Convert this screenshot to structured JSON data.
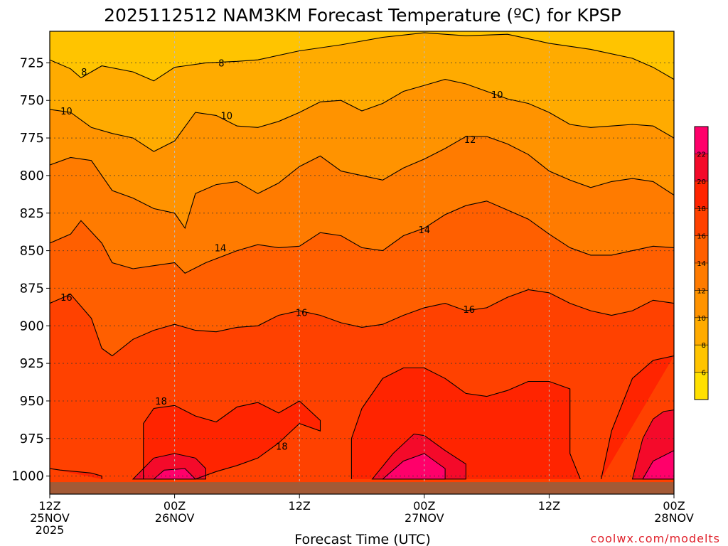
{
  "chart_data": {
    "type": "heatmap",
    "title": "2025112512 NAM3KM Forecast Temperature (ºC) for KPSP",
    "xlabel": "Forecast Time (UTC)",
    "ylabel": "",
    "credit": "coolwx.com/modelts",
    "x_ticks": [
      {
        "hour": 0,
        "line1": "12Z",
        "line2": "25NOV",
        "line3": "2025"
      },
      {
        "hour": 12,
        "line1": "00Z",
        "line2": "26NOV",
        "line3": ""
      },
      {
        "hour": 24,
        "line1": "12Z",
        "line2": "",
        "line3": ""
      },
      {
        "hour": 36,
        "line1": "00Z",
        "line2": "27NOV",
        "line3": ""
      },
      {
        "hour": 48,
        "line1": "12Z",
        "line2": "",
        "line3": ""
      },
      {
        "hour": 60,
        "line1": "00Z",
        "line2": "28NOV",
        "line3": ""
      }
    ],
    "x_range_hours": [
      0,
      60
    ],
    "y_ticks": [
      "725",
      "750",
      "775",
      "800",
      "825",
      "850",
      "875",
      "900",
      "925",
      "950",
      "975",
      "1000"
    ],
    "y_tick_values": [
      725,
      750,
      775,
      800,
      825,
      850,
      875,
      900,
      925,
      950,
      975,
      1000
    ],
    "y_range_hPa": [
      704,
      1012
    ],
    "y_inverted": true,
    "surface_pressure_hPa": 1004,
    "colorbar": {
      "levels": [
        4,
        6,
        8,
        10,
        12,
        14,
        16,
        18,
        20,
        22,
        24
      ],
      "tick_labels": [
        "6",
        "8",
        "10",
        "12",
        "14",
        "16",
        "18",
        "20",
        "22"
      ],
      "colors": [
        "#ffe000",
        "#ffc400",
        "#ffab00",
        "#ff9300",
        "#ff7b00",
        "#ff5f00",
        "#ff4100",
        "#ff2400",
        "#f40a2a",
        "#ff006a"
      ]
    },
    "contours": [
      {
        "value": 8,
        "label": "8",
        "points": [
          [
            0,
            723
          ],
          [
            2,
            729
          ],
          [
            3,
            735
          ],
          [
            5,
            727
          ],
          [
            8,
            731
          ],
          [
            10,
            737
          ],
          [
            12,
            728
          ],
          [
            15,
            725
          ],
          [
            18,
            724
          ],
          [
            20,
            723
          ],
          [
            24,
            717
          ],
          [
            28,
            713
          ],
          [
            32,
            708
          ],
          [
            36,
            705
          ],
          [
            40,
            707
          ],
          [
            44,
            706
          ],
          [
            48,
            712
          ],
          [
            52,
            716
          ],
          [
            56,
            722
          ],
          [
            58,
            728
          ],
          [
            60,
            736
          ]
        ]
      },
      {
        "value": 10,
        "label": "10",
        "points": [
          [
            0,
            756
          ],
          [
            2,
            758
          ],
          [
            4,
            768
          ],
          [
            6,
            772
          ],
          [
            8,
            775
          ],
          [
            10,
            784
          ],
          [
            12,
            777
          ],
          [
            14,
            758
          ],
          [
            16,
            760
          ],
          [
            18,
            767
          ],
          [
            20,
            768
          ],
          [
            22,
            764
          ],
          [
            24,
            758
          ],
          [
            26,
            751
          ],
          [
            28,
            750
          ],
          [
            30,
            757
          ],
          [
            32,
            752
          ],
          [
            34,
            744
          ],
          [
            36,
            740
          ],
          [
            38,
            736
          ],
          [
            40,
            739
          ],
          [
            42,
            744
          ],
          [
            44,
            749
          ],
          [
            46,
            752
          ],
          [
            48,
            758
          ],
          [
            50,
            766
          ],
          [
            52,
            768
          ],
          [
            54,
            767
          ],
          [
            56,
            766
          ],
          [
            58,
            767
          ],
          [
            60,
            775
          ]
        ]
      },
      {
        "value": 12,
        "label": "12",
        "points": [
          [
            0,
            793
          ],
          [
            2,
            788
          ],
          [
            4,
            790
          ],
          [
            6,
            810
          ],
          [
            8,
            815
          ],
          [
            10,
            822
          ],
          [
            12,
            825
          ],
          [
            13,
            835
          ],
          [
            14,
            812
          ],
          [
            16,
            806
          ],
          [
            18,
            804
          ],
          [
            20,
            812
          ],
          [
            22,
            805
          ],
          [
            24,
            794
          ],
          [
            26,
            787
          ],
          [
            28,
            797
          ],
          [
            30,
            800
          ],
          [
            32,
            803
          ],
          [
            34,
            795
          ],
          [
            36,
            789
          ],
          [
            38,
            782
          ],
          [
            40,
            774
          ],
          [
            42,
            774
          ],
          [
            44,
            779
          ],
          [
            46,
            786
          ],
          [
            48,
            797
          ],
          [
            50,
            803
          ],
          [
            52,
            808
          ],
          [
            54,
            804
          ],
          [
            56,
            802
          ],
          [
            58,
            804
          ],
          [
            60,
            813
          ]
        ]
      },
      {
        "value": 14,
        "label": "14",
        "points": [
          [
            0,
            845
          ],
          [
            2,
            839
          ],
          [
            3,
            830
          ],
          [
            5,
            845
          ],
          [
            6,
            858
          ],
          [
            8,
            862
          ],
          [
            10,
            860
          ],
          [
            12,
            858
          ],
          [
            13,
            865
          ],
          [
            15,
            858
          ],
          [
            18,
            850
          ],
          [
            20,
            846
          ],
          [
            22,
            848
          ],
          [
            24,
            847
          ],
          [
            26,
            838
          ],
          [
            28,
            840
          ],
          [
            30,
            848
          ],
          [
            32,
            850
          ],
          [
            34,
            840
          ],
          [
            36,
            835
          ],
          [
            38,
            826
          ],
          [
            40,
            820
          ],
          [
            42,
            817
          ],
          [
            44,
            823
          ],
          [
            46,
            829
          ],
          [
            48,
            839
          ],
          [
            50,
            848
          ],
          [
            52,
            853
          ],
          [
            54,
            853
          ],
          [
            56,
            850
          ],
          [
            58,
            847
          ],
          [
            60,
            848
          ]
        ]
      },
      {
        "value": 16,
        "label": "16",
        "points": [
          [
            0,
            885
          ],
          [
            2,
            879
          ],
          [
            4,
            895
          ],
          [
            5,
            915
          ],
          [
            6,
            920
          ],
          [
            8,
            909
          ],
          [
            10,
            903
          ],
          [
            12,
            899
          ],
          [
            14,
            903
          ],
          [
            16,
            904
          ],
          [
            18,
            901
          ],
          [
            20,
            900
          ],
          [
            22,
            893
          ],
          [
            24,
            890
          ],
          [
            26,
            893
          ],
          [
            28,
            898
          ],
          [
            30,
            901
          ],
          [
            32,
            899
          ],
          [
            34,
            893
          ],
          [
            36,
            888
          ],
          [
            38,
            885
          ],
          [
            40,
            890
          ],
          [
            42,
            888
          ],
          [
            44,
            881
          ],
          [
            46,
            876
          ],
          [
            48,
            878
          ],
          [
            50,
            885
          ],
          [
            52,
            890
          ],
          [
            54,
            893
          ],
          [
            56,
            890
          ],
          [
            58,
            883
          ],
          [
            60,
            885
          ]
        ]
      },
      {
        "value": 18,
        "label": "18",
        "points": [
          [
            9,
            1002
          ],
          [
            9,
            965
          ],
          [
            10,
            955
          ],
          [
            12,
            953
          ],
          [
            14,
            960
          ],
          [
            16,
            964
          ],
          [
            18,
            954
          ],
          [
            20,
            951
          ],
          [
            22,
            958
          ],
          [
            24,
            950
          ],
          [
            26,
            963
          ],
          [
            26,
            970
          ],
          [
            24,
            965
          ],
          [
            22,
            978
          ],
          [
            20,
            988
          ],
          [
            18,
            993
          ],
          [
            16,
            997
          ],
          [
            14,
            1002
          ]
        ]
      },
      {
        "value": 18,
        "label": "",
        "points": [
          [
            29,
            1002
          ],
          [
            29,
            975
          ],
          [
            30,
            955
          ],
          [
            32,
            935
          ],
          [
            34,
            928
          ],
          [
            36,
            928
          ],
          [
            38,
            935
          ],
          [
            40,
            945
          ],
          [
            42,
            947
          ],
          [
            44,
            943
          ],
          [
            46,
            937
          ],
          [
            48,
            937
          ],
          [
            50,
            942
          ],
          [
            50,
            985
          ],
          [
            51,
            1002
          ]
        ]
      },
      {
        "value": 18,
        "label": "",
        "points": [
          [
            53,
            1002
          ],
          [
            54,
            970
          ],
          [
            56,
            935
          ],
          [
            58,
            923
          ],
          [
            60,
            920
          ]
        ]
      },
      {
        "value": 18,
        "label": "",
        "points": [
          [
            0,
            995
          ],
          [
            1,
            996
          ],
          [
            4,
            998
          ],
          [
            5,
            1000
          ],
          [
            5,
            1002
          ]
        ]
      }
    ],
    "contour_label_positions": [
      {
        "value": 8,
        "hour": 3.3,
        "pressure": 731
      },
      {
        "value": 8,
        "hour": 16.5,
        "pressure": 725
      },
      {
        "value": 10,
        "hour": 1.6,
        "pressure": 757
      },
      {
        "value": 10,
        "hour": 17.0,
        "pressure": 760
      },
      {
        "value": 10,
        "hour": 43.0,
        "pressure": 746
      },
      {
        "value": 12,
        "hour": 40.4,
        "pressure": 776
      },
      {
        "value": 14,
        "hour": 16.4,
        "pressure": 848
      },
      {
        "value": 14,
        "hour": 36.0,
        "pressure": 836
      },
      {
        "value": 16,
        "hour": 1.6,
        "pressure": 881
      },
      {
        "value": 16,
        "hour": 24.2,
        "pressure": 891
      },
      {
        "value": 16,
        "hour": 40.3,
        "pressure": 889
      },
      {
        "value": 18,
        "hour": 10.7,
        "pressure": 950
      },
      {
        "value": 18,
        "hour": 22.3,
        "pressure": 980
      }
    ],
    "hot_regions": [
      {
        "value": 20,
        "points": [
          [
            8,
            1002
          ],
          [
            9,
            995
          ],
          [
            10,
            988
          ],
          [
            12,
            985
          ],
          [
            14,
            988
          ],
          [
            15,
            995
          ],
          [
            15,
            1002
          ]
        ]
      },
      {
        "value": 22,
        "points": [
          [
            10,
            1002
          ],
          [
            11,
            996
          ],
          [
            13,
            995
          ],
          [
            14,
            1002
          ]
        ]
      },
      {
        "value": 20,
        "points": [
          [
            31,
            1002
          ],
          [
            33,
            985
          ],
          [
            35,
            972
          ],
          [
            36,
            973
          ],
          [
            38,
            983
          ],
          [
            40,
            992
          ],
          [
            40,
            1002
          ]
        ]
      },
      {
        "value": 22,
        "points": [
          [
            32,
            1002
          ],
          [
            34,
            990
          ],
          [
            36,
            985
          ],
          [
            38,
            995
          ],
          [
            38,
            1002
          ]
        ]
      },
      {
        "value": 20,
        "points": [
          [
            56,
            1002
          ],
          [
            57,
            975
          ],
          [
            58,
            962
          ],
          [
            59,
            957
          ],
          [
            60,
            956
          ],
          [
            60,
            1002
          ]
        ]
      },
      {
        "value": 22,
        "points": [
          [
            57,
            1002
          ],
          [
            58,
            990
          ],
          [
            60,
            983
          ],
          [
            60,
            1002
          ]
        ]
      }
    ]
  }
}
